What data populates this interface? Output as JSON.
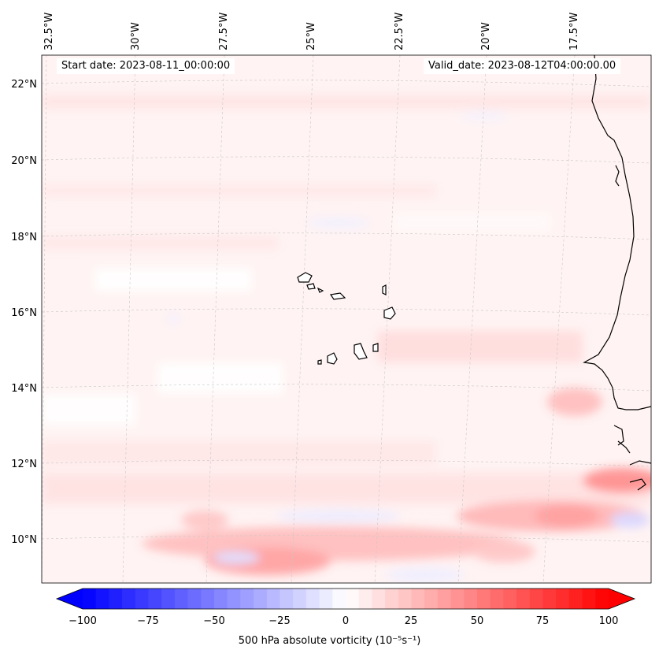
{
  "header": {
    "start_date": "Start date: 2023-08-11_00:00:00",
    "valid_date": "Valid_date: 2023-08-12T04:00:00.00"
  },
  "map": {
    "lon_labels": [
      "32.5°W",
      "30°W",
      "27.5°W",
      "25°W",
      "22.5°W",
      "20°W",
      "17.5°W"
    ],
    "lat_labels": [
      "22°N",
      "20°N",
      "18°N",
      "16°N",
      "14°N",
      "12°N",
      "10°N"
    ],
    "field": "500 hPa absolute vorticity"
  },
  "colorbar": {
    "ticks": [
      "−100",
      "−75",
      "−50",
      "−25",
      "0",
      "25",
      "50",
      "75",
      "100"
    ],
    "label": "500 hPa absolute vorticity (10⁻⁵s⁻¹)",
    "min": -100,
    "max": 100,
    "neg_color": "#0000ff",
    "pos_color": "#ff0000"
  }
}
